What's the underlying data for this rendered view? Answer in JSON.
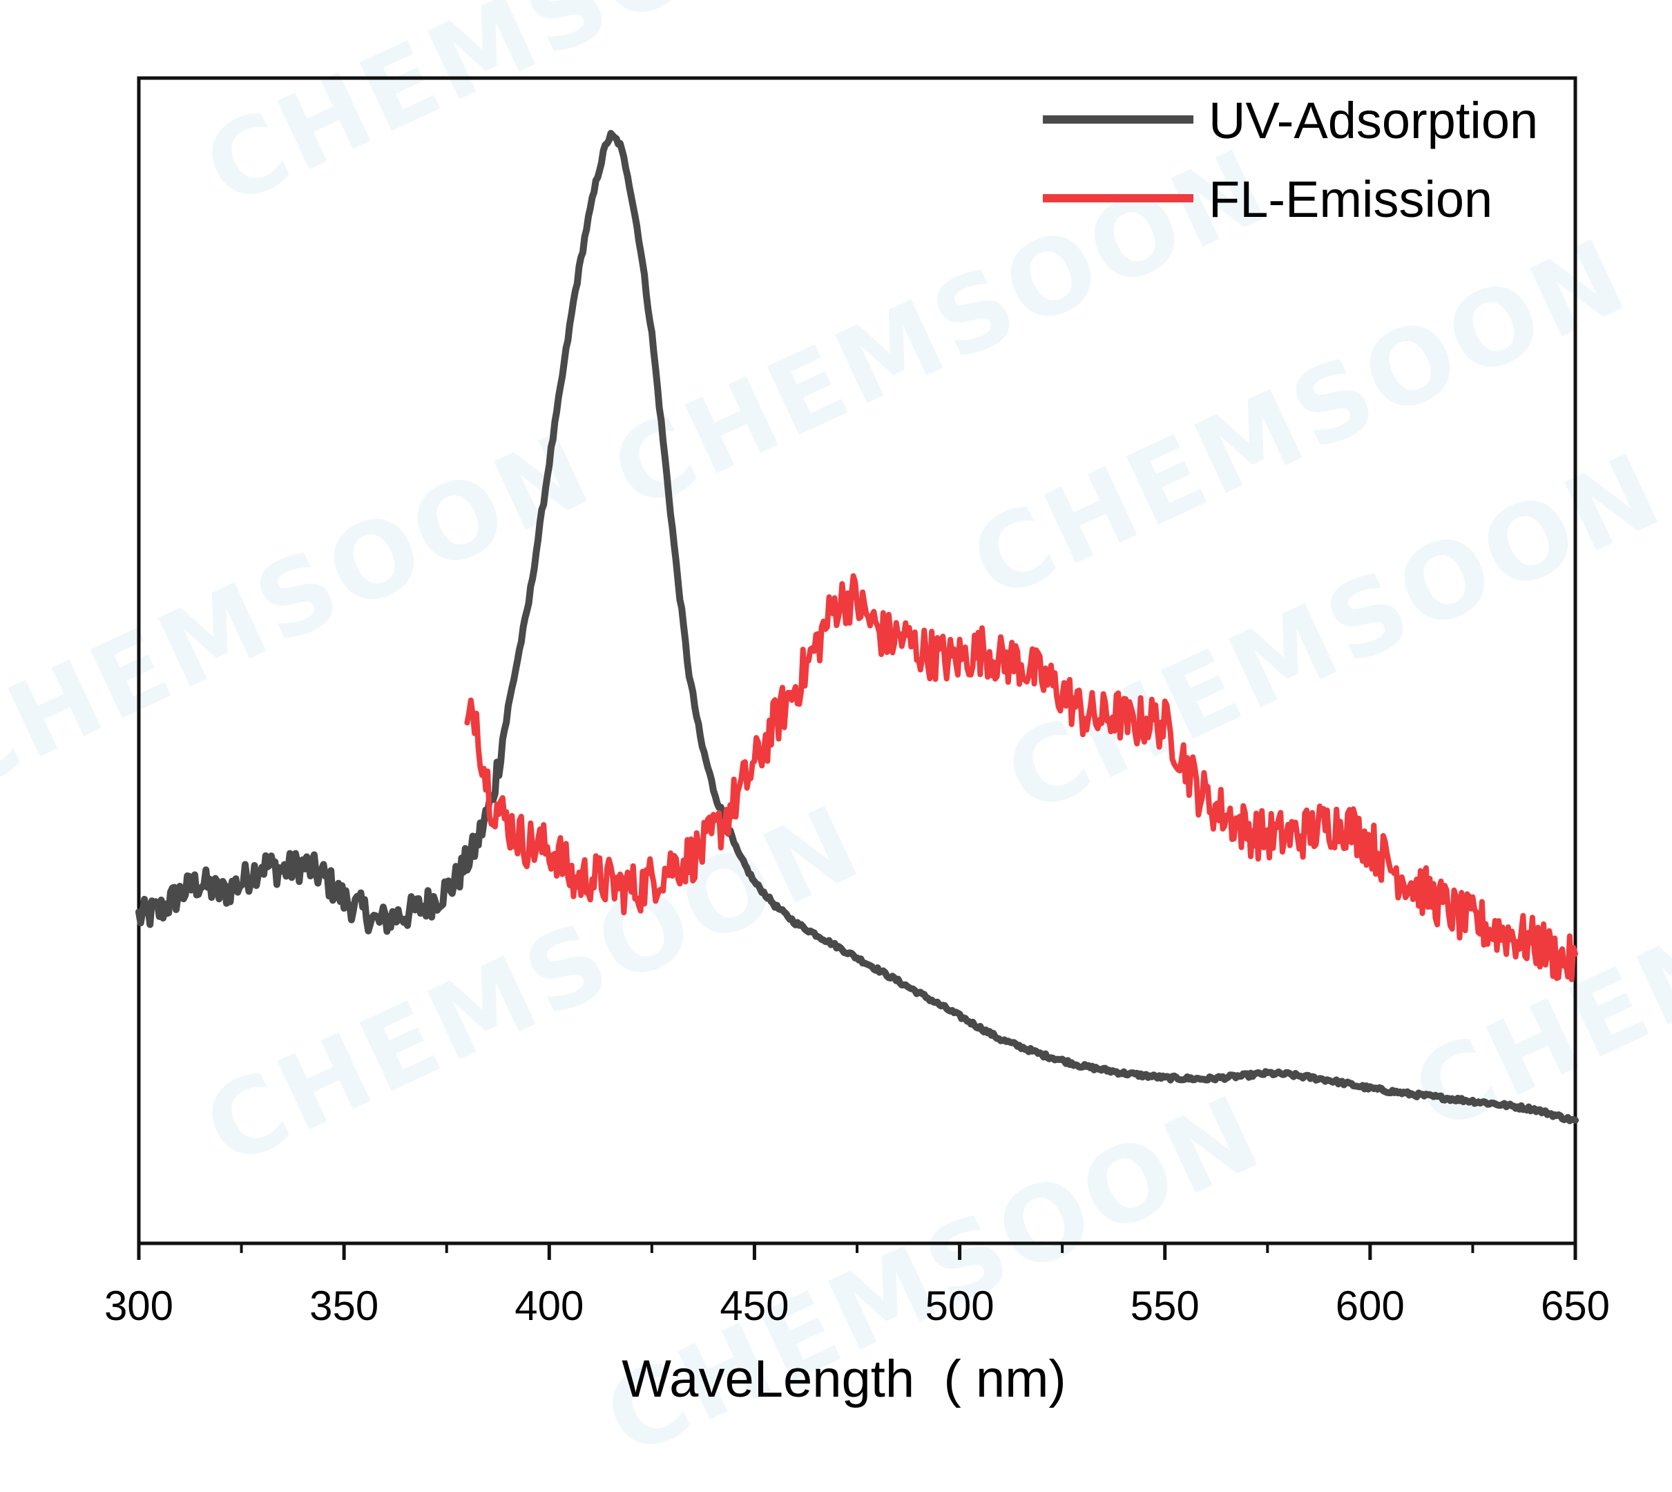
{
  "watermark": "CHEMSOON",
  "chart_data": {
    "type": "line",
    "title": "",
    "xlabel": "WaveLength  ( nm)",
    "ylabel": "",
    "xlim": [
      300,
      650
    ],
    "ylim": [
      0,
      100
    ],
    "x_ticks": [
      300,
      350,
      400,
      450,
      500,
      550,
      600,
      650
    ],
    "y_ticks_shown": false,
    "legend": "top-right",
    "series": [
      {
        "name": "UV-Adsorption",
        "color": "#4a4a4a",
        "points": [
          [
            300,
            28
          ],
          [
            305,
            28.5
          ],
          [
            310,
            30
          ],
          [
            315,
            31
          ],
          [
            320,
            30
          ],
          [
            325,
            31
          ],
          [
            330,
            32.5
          ],
          [
            335,
            32
          ],
          [
            340,
            32.5
          ],
          [
            345,
            31.5
          ],
          [
            350,
            29.5
          ],
          [
            355,
            28.5
          ],
          [
            358,
            27.5
          ],
          [
            362,
            28
          ],
          [
            367,
            28.5
          ],
          [
            372,
            29.5
          ],
          [
            377,
            31
          ],
          [
            382,
            34
          ],
          [
            386,
            38
          ],
          [
            390,
            46
          ],
          [
            395,
            55
          ],
          [
            400,
            67
          ],
          [
            403,
            74
          ],
          [
            406,
            81
          ],
          [
            409,
            87
          ],
          [
            412,
            92
          ],
          [
            414,
            94.5
          ],
          [
            415,
            95
          ],
          [
            417,
            94.5
          ],
          [
            419,
            92
          ],
          [
            422,
            86
          ],
          [
            425,
            78
          ],
          [
            428,
            68
          ],
          [
            431,
            58
          ],
          [
            434,
            49
          ],
          [
            437,
            43
          ],
          [
            440,
            39
          ],
          [
            443,
            36
          ],
          [
            446,
            33.5
          ],
          [
            450,
            31
          ],
          [
            455,
            29
          ],
          [
            460,
            27.5
          ],
          [
            470,
            25.5
          ],
          [
            480,
            23.5
          ],
          [
            490,
            21.5
          ],
          [
            500,
            19.5
          ],
          [
            510,
            17.5
          ],
          [
            520,
            16.2
          ],
          [
            530,
            15.2
          ],
          [
            540,
            14.6
          ],
          [
            550,
            14.2
          ],
          [
            560,
            14.1
          ],
          [
            570,
            14.4
          ],
          [
            575,
            14.6
          ],
          [
            580,
            14.5
          ],
          [
            590,
            14
          ],
          [
            600,
            13.3
          ],
          [
            610,
            12.8
          ],
          [
            620,
            12.4
          ],
          [
            630,
            12
          ],
          [
            640,
            11.5
          ],
          [
            650,
            10.5
          ]
        ]
      },
      {
        "name": "FL-Emission",
        "color": "#ef3b3e",
        "points": [
          [
            380,
            44
          ],
          [
            382,
            46
          ],
          [
            384,
            41
          ],
          [
            386,
            38
          ],
          [
            390,
            36
          ],
          [
            394,
            34.5
          ],
          [
            398,
            34
          ],
          [
            402,
            33.5
          ],
          [
            406,
            31
          ],
          [
            410,
            31.5
          ],
          [
            414,
            31
          ],
          [
            418,
            30.5
          ],
          [
            422,
            30.5
          ],
          [
            426,
            31.5
          ],
          [
            430,
            32.5
          ],
          [
            434,
            33
          ],
          [
            438,
            34
          ],
          [
            442,
            36
          ],
          [
            446,
            38.5
          ],
          [
            450,
            41
          ],
          [
            454,
            44
          ],
          [
            458,
            46.5
          ],
          [
            462,
            49
          ],
          [
            466,
            52
          ],
          [
            470,
            55
          ],
          [
            474,
            55.5
          ],
          [
            478,
            53.5
          ],
          [
            482,
            52
          ],
          [
            486,
            52
          ],
          [
            490,
            51
          ],
          [
            494,
            50.5
          ],
          [
            498,
            50
          ],
          [
            502,
            50.5
          ],
          [
            506,
            51
          ],
          [
            510,
            50
          ],
          [
            514,
            50
          ],
          [
            518,
            49
          ],
          [
            522,
            48
          ],
          [
            526,
            47
          ],
          [
            530,
            45.5
          ],
          [
            534,
            45
          ],
          [
            538,
            45.5
          ],
          [
            542,
            44.5
          ],
          [
            546,
            45
          ],
          [
            550,
            44.5
          ],
          [
            554,
            42
          ],
          [
            558,
            39
          ],
          [
            562,
            37.5
          ],
          [
            566,
            36.5
          ],
          [
            570,
            35.5
          ],
          [
            574,
            35
          ],
          [
            578,
            35
          ],
          [
            582,
            35
          ],
          [
            586,
            35.5
          ],
          [
            590,
            36
          ],
          [
            594,
            36
          ],
          [
            598,
            35
          ],
          [
            602,
            33.5
          ],
          [
            606,
            32
          ],
          [
            610,
            31
          ],
          [
            614,
            30
          ],
          [
            618,
            29
          ],
          [
            622,
            28
          ],
          [
            626,
            27.5
          ],
          [
            630,
            27
          ],
          [
            634,
            26.5
          ],
          [
            638,
            26
          ],
          [
            642,
            25.5
          ],
          [
            646,
            24.5
          ],
          [
            650,
            24
          ]
        ]
      }
    ]
  }
}
